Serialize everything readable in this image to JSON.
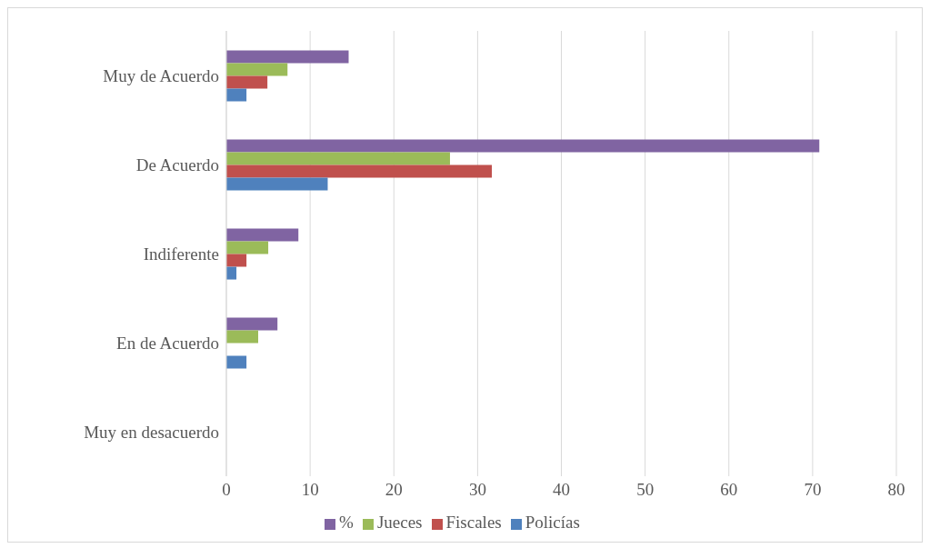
{
  "chart_data": {
    "type": "bar",
    "orientation": "horizontal",
    "categories": [
      "Muy de Acuerdo",
      "De Acuerdo",
      "Indiferente",
      "En de Acuerdo",
      "Muy en desacuerdo"
    ],
    "series": [
      {
        "name": "%",
        "color": "#8064a2",
        "values": [
          14.6,
          70.8,
          8.6,
          6.1,
          0
        ]
      },
      {
        "name": "Jueces",
        "color": "#9bbb59",
        "values": [
          7.3,
          26.7,
          5.0,
          3.8,
          0
        ]
      },
      {
        "name": "Fiscales",
        "color": "#c0504d",
        "values": [
          4.9,
          31.7,
          2.4,
          0,
          0
        ]
      },
      {
        "name": "Policías",
        "color": "#4f81bd",
        "values": [
          2.4,
          12.1,
          1.2,
          2.4,
          0
        ]
      }
    ],
    "xlim": [
      0,
      80
    ],
    "xticks": [
      0,
      10,
      20,
      30,
      40,
      50,
      60,
      70,
      80
    ],
    "grid": "x",
    "legend": "bottom"
  }
}
